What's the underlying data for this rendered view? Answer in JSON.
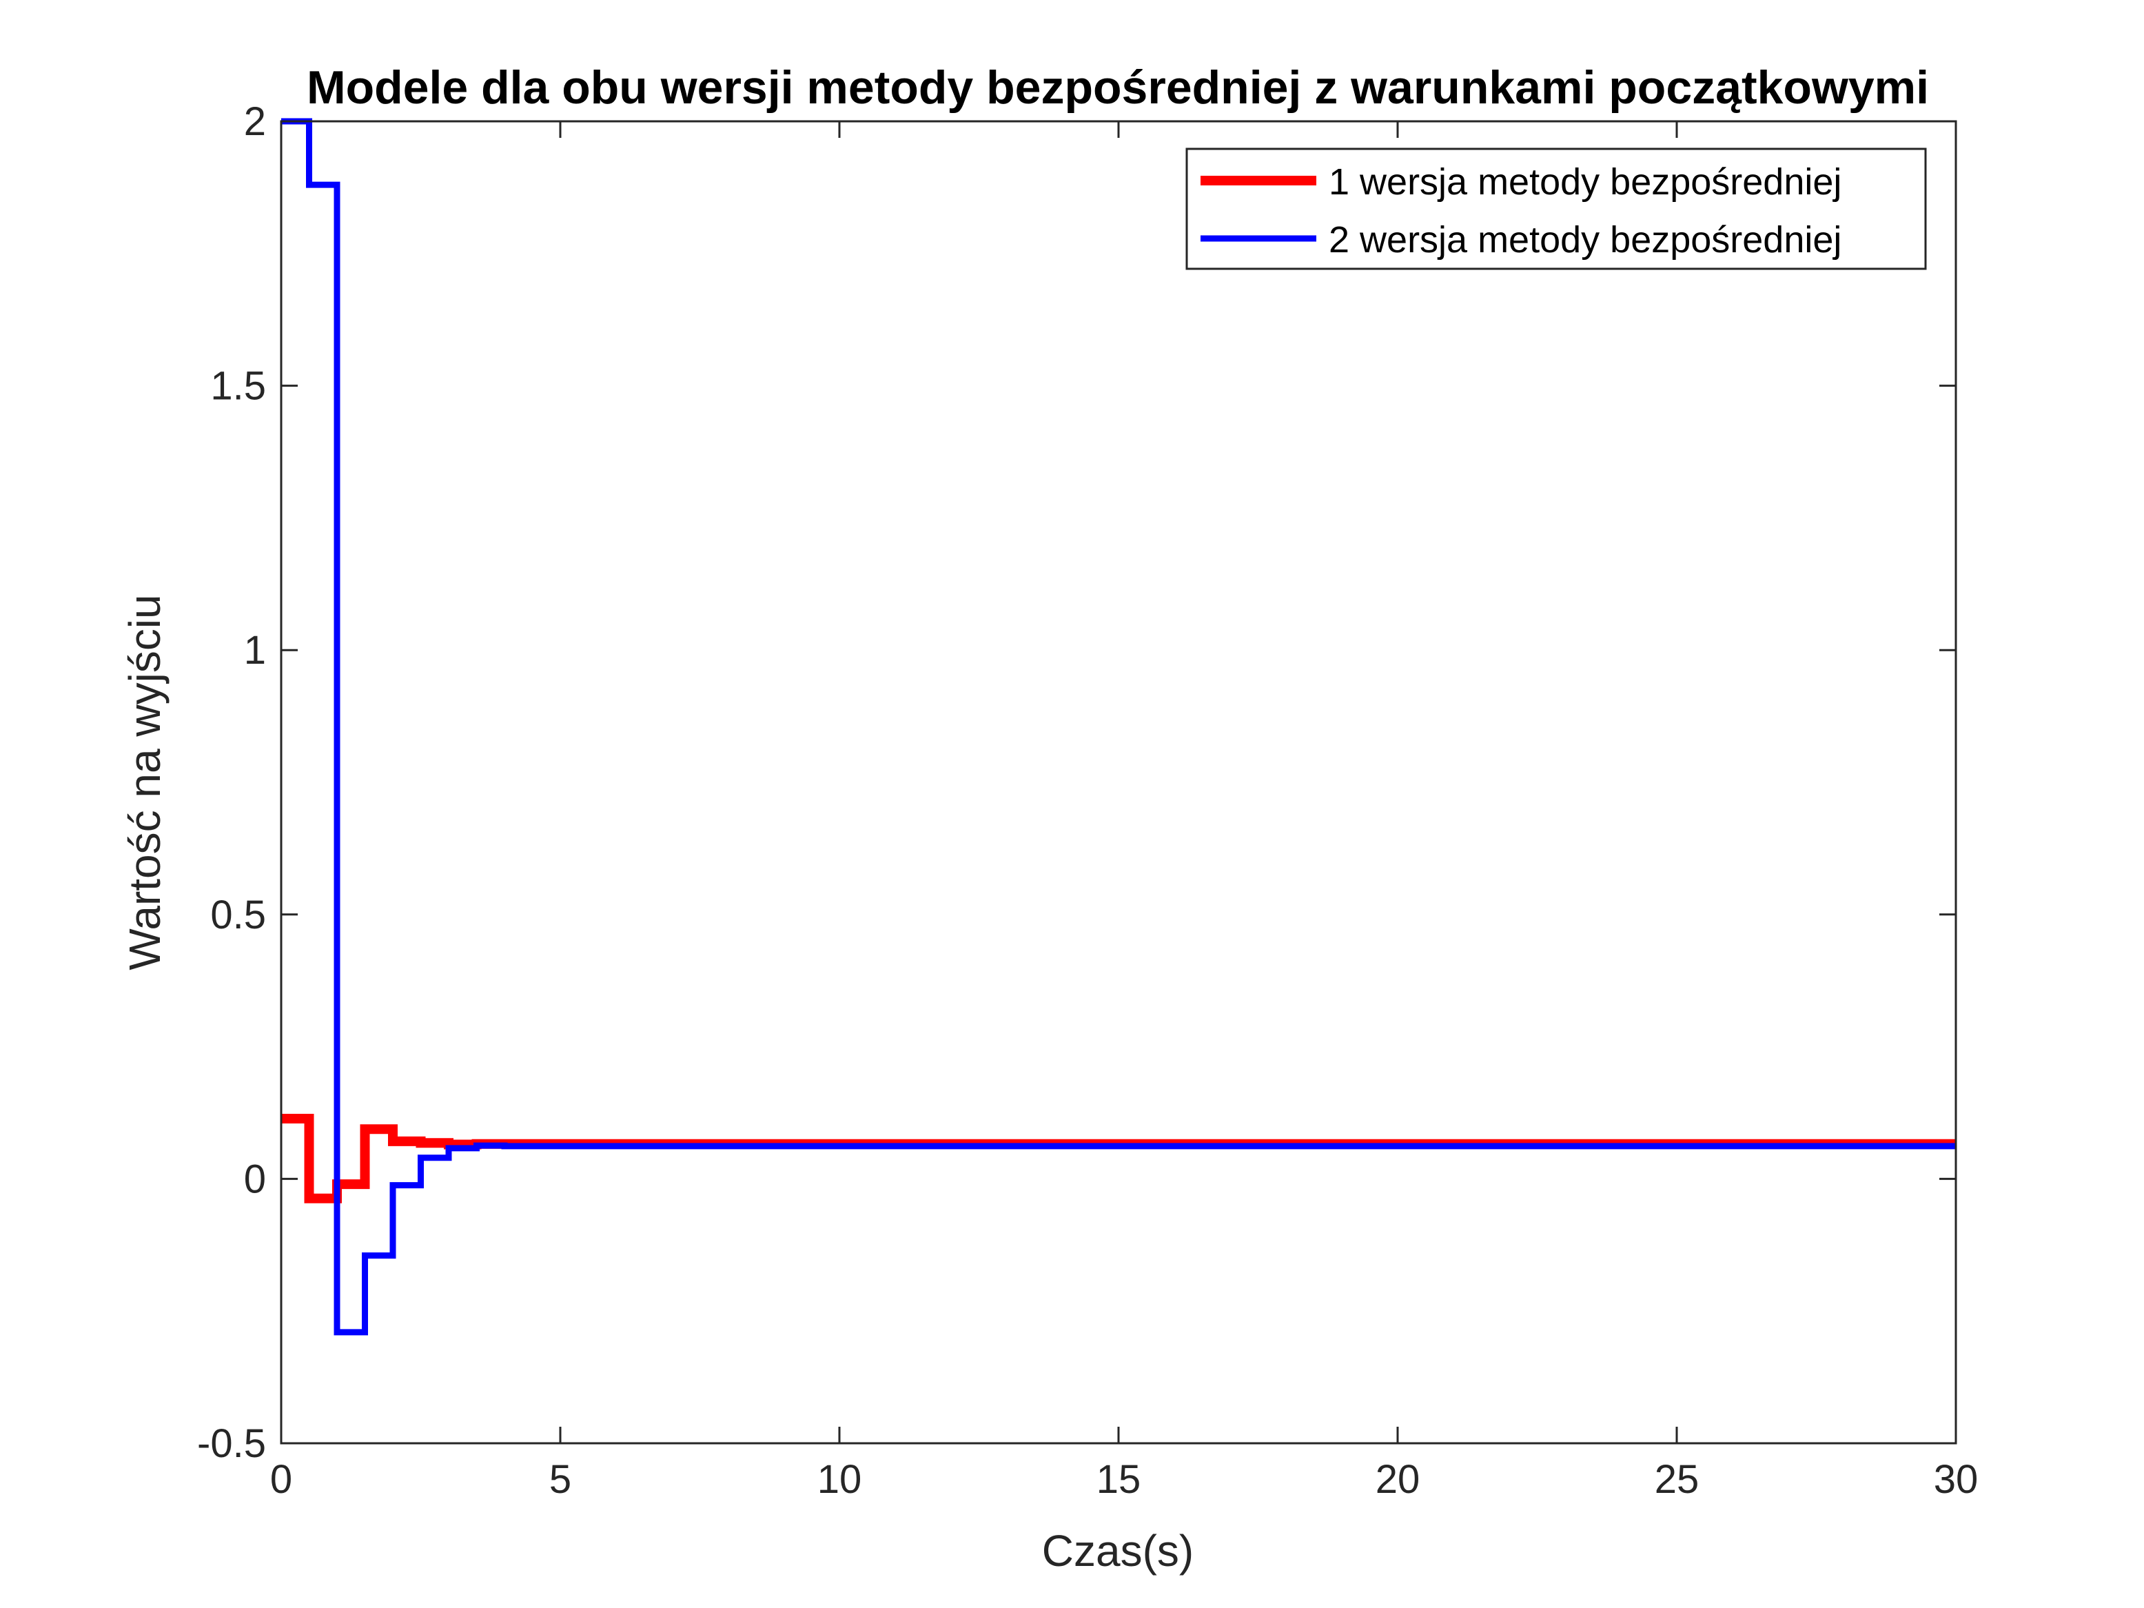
{
  "chart_data": {
    "type": "line",
    "step": true,
    "title": "Modele dla obu wersji metody bezpośredniej z warunkami początkowymi",
    "xlabel": "Czas(s)",
    "ylabel": "Wartość na wyjściu",
    "xlim": [
      0,
      30
    ],
    "ylim": [
      -0.5,
      2
    ],
    "xticks": [
      0,
      5,
      10,
      15,
      20,
      25,
      30
    ],
    "xtick_labels": [
      "0",
      "5",
      "10",
      "15",
      "20",
      "25",
      "30"
    ],
    "yticks": [
      -0.5,
      0,
      0.5,
      1,
      1.5,
      2
    ],
    "ytick_labels": [
      "-0.5",
      "0",
      "0.5",
      "1",
      "1.5",
      "2"
    ],
    "grid": false,
    "legend_position": "top-right",
    "series": [
      {
        "name": "1 wersja metody bezpośredniej",
        "color": "#ff0000",
        "x": [
          0,
          0.5,
          1,
          1.5,
          2,
          2.5,
          3,
          3.5,
          4,
          30
        ],
        "y": [
          0.114,
          -0.037,
          -0.01,
          0.094,
          0.071,
          0.068,
          0.065,
          0.066,
          0.066,
          0.066
        ]
      },
      {
        "name": "2 wersja metody bezpośredniej",
        "color": "#0000ff",
        "x": [
          0,
          0.5,
          1,
          1.5,
          2,
          2.5,
          3,
          3.5,
          4,
          30
        ],
        "y": [
          2.0,
          1.88,
          -0.29,
          -0.145,
          -0.012,
          0.04,
          0.058,
          0.063,
          0.062,
          0.062
        ]
      }
    ]
  }
}
